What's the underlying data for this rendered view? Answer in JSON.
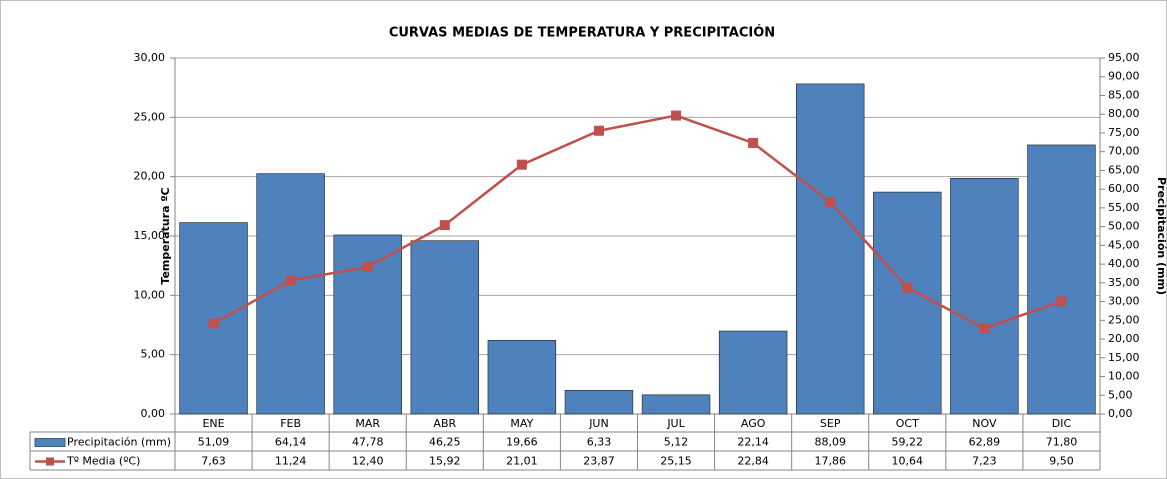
{
  "chart_data": {
    "type": "bar",
    "title": "CURVAS MEDIAS DE TEMPERATURA Y PRECIPITACIÓN",
    "y_label": "Temperatura ºC",
    "y2_label": "Precipitación (mm)",
    "categories": [
      "ENE",
      "FEB",
      "MAR",
      "ABR",
      "MAY",
      "JUN",
      "JUL",
      "AGO",
      "SEP",
      "OCT",
      "NOV",
      "DIC"
    ],
    "series": [
      {
        "name": "Precipitación (mm)",
        "type": "bar",
        "axis": "y2",
        "color": "#4f81bd",
        "values": [
          51.09,
          64.14,
          47.78,
          46.25,
          19.66,
          6.33,
          5.12,
          22.14,
          88.09,
          59.22,
          62.89,
          71.8
        ],
        "value_labels": [
          "51,09",
          "64,14",
          "47,78",
          "46,25",
          "19,66",
          "6,33",
          "5,12",
          "22,14",
          "88,09",
          "59,22",
          "62,89",
          "71,80"
        ]
      },
      {
        "name": "Tº Media (ºC)",
        "type": "line",
        "color": "#c0504d",
        "values": [
          7.63,
          11.24,
          12.4,
          15.92,
          21.01,
          23.87,
          25.15,
          22.84,
          17.86,
          10.64,
          7.23,
          9.5
        ],
        "value_labels": [
          "7,63",
          "11,24",
          "12,40",
          "15,92",
          "21,01",
          "23,87",
          "25,15",
          "22,84",
          "17,86",
          "10,64",
          "7,23",
          "9,50"
        ]
      }
    ],
    "ylim": [
      0,
      30
    ],
    "yticks": [
      {
        "value": 0,
        "label": "0,00"
      },
      {
        "value": 5,
        "label": "5,00"
      },
      {
        "value": 10,
        "label": "10,00"
      },
      {
        "value": 15,
        "label": "15,00"
      },
      {
        "value": 20,
        "label": "20,00"
      },
      {
        "value": 25,
        "label": "25,00"
      },
      {
        "value": 30,
        "label": "30,00"
      }
    ],
    "y2lim": [
      0,
      95
    ],
    "y2ticks": [
      {
        "value": 0,
        "label": "0,00"
      },
      {
        "value": 5,
        "label": "5,00"
      },
      {
        "value": 10,
        "label": "10,00"
      },
      {
        "value": 15,
        "label": "15,00"
      },
      {
        "value": 20,
        "label": "20,00"
      },
      {
        "value": 25,
        "label": "25,00"
      },
      {
        "value": 30,
        "label": "30,00"
      },
      {
        "value": 35,
        "label": "35,00"
      },
      {
        "value": 40,
        "label": "40,00"
      },
      {
        "value": 45,
        "label": "45,00"
      },
      {
        "value": 50,
        "label": "50,00"
      },
      {
        "value": 55,
        "label": "55,00"
      },
      {
        "value": 60,
        "label": "60,00"
      },
      {
        "value": 65,
        "label": "65,00"
      },
      {
        "value": 70,
        "label": "70,00"
      },
      {
        "value": 75,
        "label": "75,00"
      },
      {
        "value": 80,
        "label": "80,00"
      },
      {
        "value": 85,
        "label": "85,00"
      },
      {
        "value": 90,
        "label": "90,00"
      },
      {
        "value": 95,
        "label": "95,00"
      }
    ],
    "grid": true
  }
}
